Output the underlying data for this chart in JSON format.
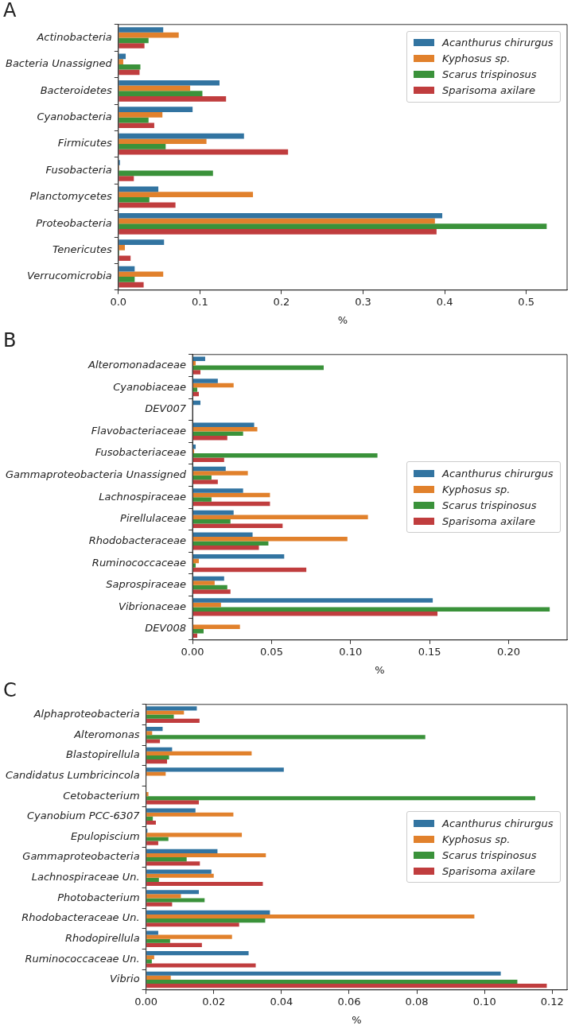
{
  "chart_data": [
    {
      "type": "bar",
      "title": "A",
      "orientation": "horizontal",
      "xlabel": "%",
      "legend": "top right",
      "grid": false,
      "categories": [
        "Actinobacteria",
        "Bacteria Unassigned",
        "Bacteroidetes",
        "Cyanobacteria",
        "Firmicutes",
        "Fusobacteria",
        "Planctomycetes",
        "Proteobacteria",
        "Tenericutes",
        "Verrucomicrobia"
      ],
      "xlim": [
        0,
        0.55
      ],
      "xticks": [
        {
          "value": 0,
          "label": "0.0"
        },
        {
          "value": 0.1,
          "label": "0.1"
        },
        {
          "value": 0.2,
          "label": "0.2"
        },
        {
          "value": 0.3,
          "label": "0.3"
        },
        {
          "value": 0.4,
          "label": "0.4"
        },
        {
          "value": 0.5,
          "label": "0.5"
        }
      ],
      "series": [
        {
          "name": "Acanthurus chirurgus",
          "color": "#3274a1",
          "values": [
            0.055,
            0.009,
            0.124,
            0.091,
            0.154,
            0.002,
            0.049,
            0.397,
            0.056,
            0.02
          ]
        },
        {
          "name": "Kyphosus sp.",
          "color": "#e1812c",
          "values": [
            0.074,
            0.006,
            0.088,
            0.054,
            0.108,
            0.001,
            0.165,
            0.388,
            0.008,
            0.055
          ]
        },
        {
          "name": "Scarus trispinosus",
          "color": "#3a923a",
          "values": [
            0.037,
            0.027,
            0.103,
            0.037,
            0.058,
            0.116,
            0.038,
            0.525,
            0.001,
            0.02
          ]
        },
        {
          "name": "Sparisoma axilare",
          "color": "#c03d3e",
          "values": [
            0.032,
            0.026,
            0.132,
            0.044,
            0.208,
            0.019,
            0.07,
            0.39,
            0.015,
            0.031
          ]
        }
      ]
    },
    {
      "type": "bar",
      "title": "B",
      "orientation": "horizontal",
      "xlabel": "%",
      "legend": "right",
      "grid": false,
      "categories": [
        "Alteromonadaceae",
        "Cyanobiaceae",
        "DEV007",
        "Flavobacteriaceae",
        "Fusobacteriaceae",
        "Gammaproteobacteria Unassigned",
        "Lachnospiraceae",
        "Pirellulaceae",
        "Rhodobacteraceae",
        "Ruminococcaceae",
        "Saprospiraceae",
        "Vibrionaceae",
        "DEV008"
      ],
      "xlim": [
        0,
        0.237
      ],
      "xticks": [
        {
          "value": 0,
          "label": "0.00"
        },
        {
          "value": 0.05,
          "label": "0.05"
        },
        {
          "value": 0.1,
          "label": "0.10"
        },
        {
          "value": 0.15,
          "label": "0.15"
        },
        {
          "value": 0.2,
          "label": "0.20"
        }
      ],
      "series": [
        {
          "name": "Acanthurus chirurgus",
          "color": "#3274a1",
          "values": [
            0.008,
            0.016,
            0.005,
            0.039,
            0.002,
            0.021,
            0.032,
            0.026,
            0.038,
            0.058,
            0.02,
            0.152,
            0
          ]
        },
        {
          "name": "Kyphosus sp.",
          "color": "#e1812c",
          "values": [
            0.002,
            0.026,
            0,
            0.041,
            0.001,
            0.035,
            0.049,
            0.111,
            0.098,
            0.004,
            0.014,
            0.018,
            0.03
          ]
        },
        {
          "name": "Scarus trispinosus",
          "color": "#3a923a",
          "values": [
            0.083,
            0.003,
            0,
            0.032,
            0.117,
            0.012,
            0.012,
            0.024,
            0.048,
            0.002,
            0.022,
            0.226,
            0.007
          ]
        },
        {
          "name": "Sparisoma axilare",
          "color": "#c03d3e",
          "values": [
            0.005,
            0.004,
            0,
            0.022,
            0.02,
            0.016,
            0.049,
            0.057,
            0.042,
            0.072,
            0.024,
            0.155,
            0.003
          ]
        }
      ]
    },
    {
      "type": "bar",
      "title": "C",
      "orientation": "horizontal",
      "xlabel": "%",
      "legend": "right",
      "grid": false,
      "categories": [
        "Alphaproteobacteria",
        "Alteromonas",
        "Blastopirellula",
        "Candidatus Lumbricincola",
        "Cetobacterium",
        "Cyanobium PCC-6307",
        "Epulopiscium",
        "Gammaproteobacteria",
        "Lachnospiraceae Un.",
        "Photobacterium",
        "Rhodobacteraceae Un.",
        "Rhodopirellula",
        "Ruminococcaceae Un.",
        "Vibrio"
      ],
      "xlim": [
        0,
        0.1244
      ],
      "xticks": [
        {
          "value": 0,
          "label": "0.00"
        },
        {
          "value": 0.02,
          "label": "0.02"
        },
        {
          "value": 0.04,
          "label": "0.04"
        },
        {
          "value": 0.06,
          "label": "0.06"
        },
        {
          "value": 0.08,
          "label": "0.08"
        },
        {
          "value": 0.1,
          "label": "0.10"
        },
        {
          "value": 0.12,
          "label": "0.12"
        }
      ],
      "series": [
        {
          "name": "Acanthurus chirurgus",
          "color": "#3274a1",
          "values": [
            0.015,
            0.0049,
            0.0077,
            0.0407,
            null,
            0.0146,
            0.0004,
            0.0211,
            0.0193,
            0.0156,
            0.0366,
            0.0036,
            0.0303,
            0.1048
          ]
        },
        {
          "name": "Kyphosus sp.",
          "color": "#e1812c",
          "values": [
            0.0112,
            0.0018,
            0.0312,
            0.0058,
            0.0007,
            0.0258,
            0.0283,
            0.0354,
            0.02,
            0.0103,
            0.097,
            0.0254,
            0.0024,
            0.0073
          ]
        },
        {
          "name": "Scarus trispinosus",
          "color": "#3a923a",
          "values": [
            0.0082,
            0.0825,
            0.0068,
            0,
            0.115,
            0.002,
            0.0066,
            0.012,
            0.0038,
            0.0173,
            0.0352,
            0.0071,
            0.0017,
            0.1097
          ]
        },
        {
          "name": "Sparisoma axilare",
          "color": "#c03d3e",
          "values": [
            0.0158,
            0.0041,
            0.0062,
            0,
            0.0156,
            0.0029,
            0.0036,
            0.0159,
            0.0345,
            0.0077,
            0.0275,
            0.0165,
            0.0324,
            0.1184
          ]
        }
      ]
    }
  ]
}
